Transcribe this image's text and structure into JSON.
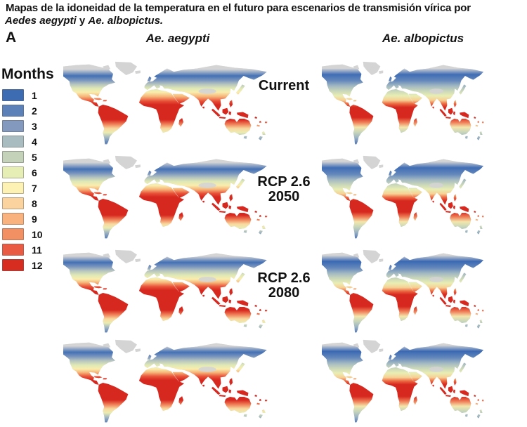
{
  "title": {
    "line1": "Mapas de la idoneidad de la temperatura en el futuro para escenarios de transmisión vírica por",
    "species1": "Aedes aegypti",
    "conjunction": " y ",
    "species2": "Ae. albopictus."
  },
  "panel_label": "A",
  "columns": [
    {
      "label": "Ae. aegypti"
    },
    {
      "label": "Ae. albopictus"
    }
  ],
  "rows": [
    {
      "label_lines": [
        "Current"
      ]
    },
    {
      "label_lines": [
        "RCP 2.6",
        "2050"
      ]
    },
    {
      "label_lines": [
        "RCP 2.6",
        "2080"
      ]
    }
  ],
  "legend": {
    "title": "Months",
    "entries": [
      {
        "value": "1",
        "color": "#3e6cb3"
      },
      {
        "value": "2",
        "color": "#5c80b8"
      },
      {
        "value": "3",
        "color": "#8399bd"
      },
      {
        "value": "4",
        "color": "#a9bdc1"
      },
      {
        "value": "5",
        "color": "#c5d2ba"
      },
      {
        "value": "6",
        "color": "#e6edb5"
      },
      {
        "value": "7",
        "color": "#fdf1b4"
      },
      {
        "value": "8",
        "color": "#fbd39e"
      },
      {
        "value": "9",
        "color": "#f9b27e"
      },
      {
        "value": "10",
        "color": "#f39063"
      },
      {
        "value": "11",
        "color": "#ea5b44"
      },
      {
        "value": "12",
        "color": "#d62d20"
      }
    ]
  },
  "map_colors": {
    "land_no_data": "#d4d4d4",
    "ocean": "#ffffff",
    "suitability_low": "#3e6cb3",
    "suitability_high": "#d62d20"
  }
}
